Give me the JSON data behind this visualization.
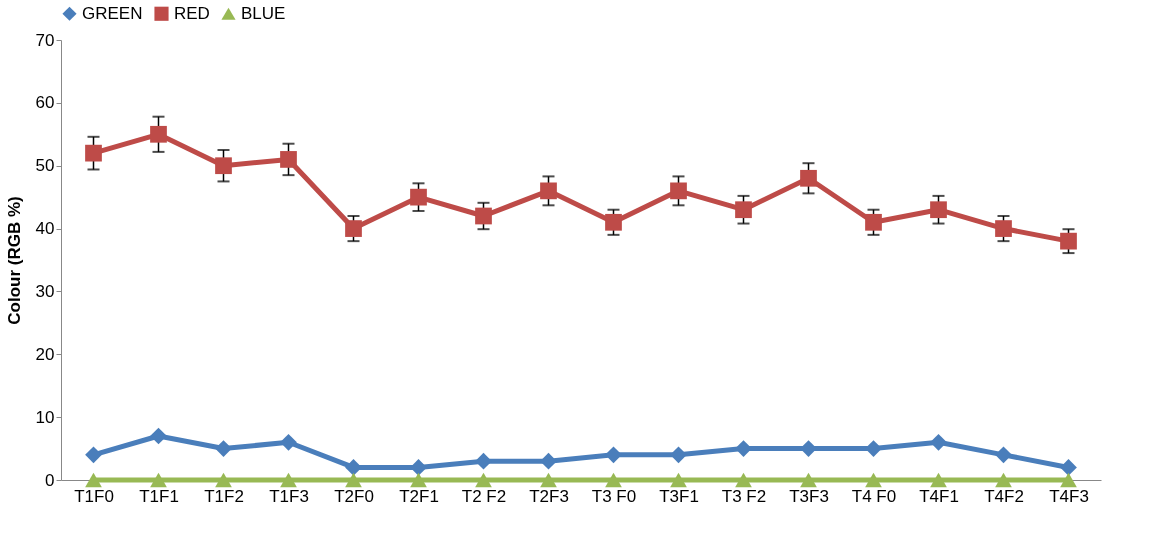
{
  "chart_data": {
    "type": "line",
    "ylabel": "Colour (RGB %)",
    "categories": [
      "T1F0",
      "T1F1",
      "T1F2",
      "T1F3",
      "T2F0",
      "T2F1",
      "T2 F2",
      "T2F3",
      "T3 F0",
      "T3F1",
      "T3 F2",
      "T3F3",
      "T4 F0",
      "T4F1",
      "T4F2",
      "T4F3"
    ],
    "series": [
      {
        "name": "GREEN",
        "color": "#4a7ebb",
        "marker": "diamond",
        "values": [
          4,
          7,
          5,
          6,
          2,
          2,
          3,
          3,
          4,
          4,
          5,
          5,
          5,
          6,
          4,
          2
        ]
      },
      {
        "name": "RED",
        "color": "#be4b48",
        "marker": "square",
        "values": [
          52,
          55,
          50,
          51,
          40,
          45,
          42,
          46,
          41,
          46,
          43,
          48,
          41,
          43,
          40,
          38
        ],
        "errors": [
          2.6,
          2.8,
          2.5,
          2.5,
          2.0,
          2.2,
          2.1,
          2.3,
          2.0,
          2.3,
          2.2,
          2.4,
          2.0,
          2.2,
          2.0,
          1.9
        ]
      },
      {
        "name": "BLUE",
        "color": "#98b954",
        "marker": "triangle",
        "values": [
          0,
          0,
          0,
          0,
          0,
          0,
          0,
          0,
          0,
          0,
          0,
          0,
          0,
          0,
          0,
          0
        ]
      }
    ],
    "ylim": [
      0,
      70
    ],
    "yticks": [
      0,
      10,
      20,
      30,
      40,
      50,
      60,
      70
    ],
    "grid": false,
    "legend": "top"
  }
}
